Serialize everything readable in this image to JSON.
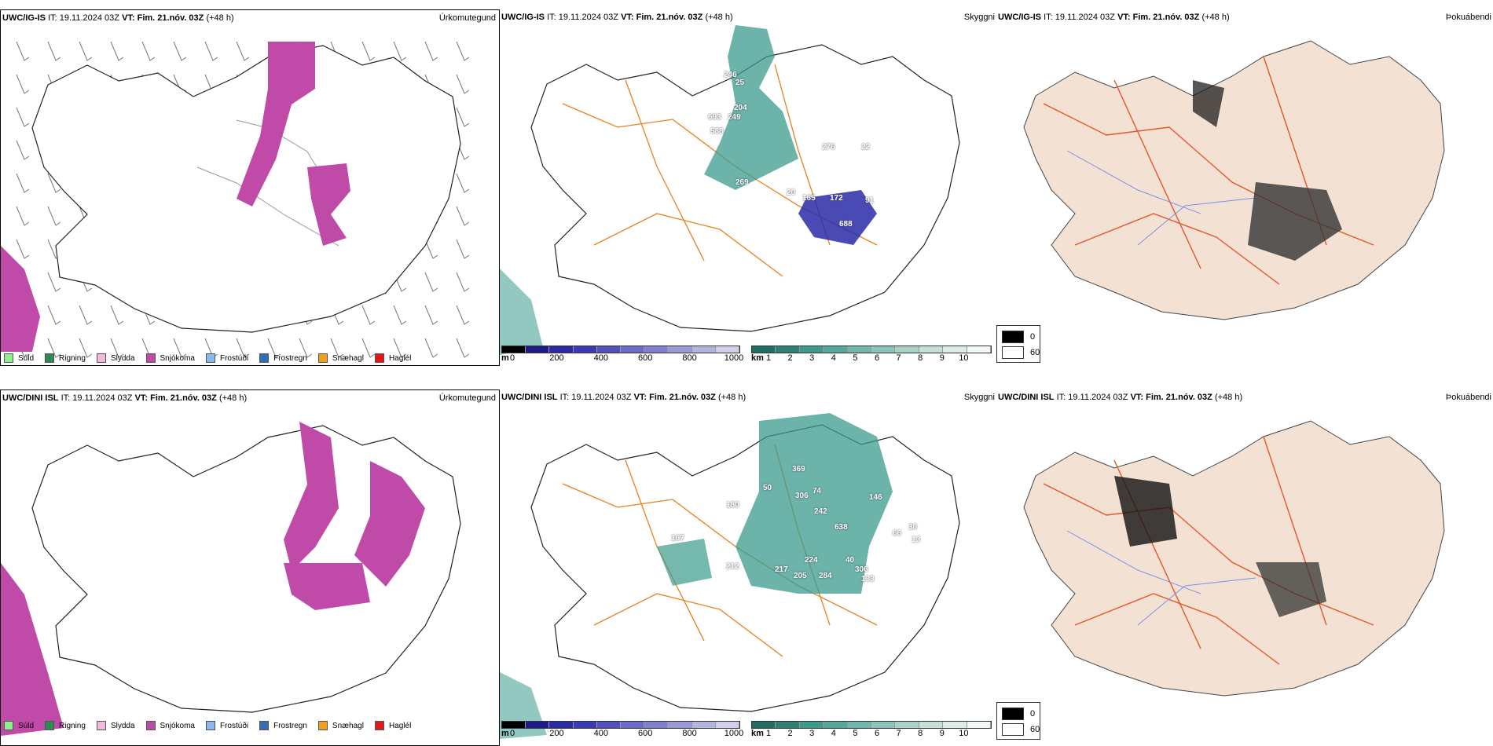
{
  "rows": [
    {
      "model": "UWC/IG-IS",
      "it_label": "IT:",
      "it_value": "19.11.2024 03Z",
      "vt_label": "VT:",
      "vt_value": "Fim. 21.nóv. 03Z",
      "lead": "(+48 h)",
      "panel_titles": [
        "Úrkomutegund",
        "Skyggni",
        "Þokuábendi"
      ],
      "visibility_labels": [
        "246",
        "25",
        "204",
        "693",
        "249",
        "588",
        "276",
        "22",
        "269",
        "20",
        "165",
        "172",
        "91",
        "688"
      ]
    },
    {
      "model": "UWC/DINI ISL",
      "it_label": "IT:",
      "it_value": "19.11.2024 03Z",
      "vt_label": "VT:",
      "vt_value": "Fim. 21.nóv. 03Z",
      "lead": "(+48 h)",
      "panel_titles": [
        "Úrkomutegund",
        "Skyggni",
        "Þokuábendi"
      ],
      "visibility_labels": [
        "369",
        "50",
        "306",
        "74",
        "180",
        "242",
        "146",
        "638",
        "30",
        "66",
        "13",
        "167",
        "224",
        "212",
        "217",
        "205",
        "284",
        "40",
        "306",
        "133"
      ]
    }
  ],
  "precip_legend": [
    {
      "label": "Súld",
      "color": "#90ee90"
    },
    {
      "label": "Rigning",
      "color": "#2e8b57"
    },
    {
      "label": "Slydda",
      "color": "#f4b8dc"
    },
    {
      "label": "Snjókoma",
      "color": "#c04aa8"
    },
    {
      "label": "Frostúði",
      "color": "#87b9ef"
    },
    {
      "label": "Frostregn",
      "color": "#2f6fb8"
    },
    {
      "label": "Snæhagl",
      "color": "#f0a020"
    },
    {
      "label": "Haglél",
      "color": "#e01818"
    }
  ],
  "vis_m_bar": {
    "unit": "m",
    "ticks": [
      "0",
      "200",
      "400",
      "600",
      "800",
      "1000"
    ]
  },
  "vis_km_bar": {
    "unit": "km",
    "ticks": [
      "1",
      "2",
      "3",
      "4",
      "5",
      "6",
      "7",
      "8",
      "9",
      "10"
    ]
  },
  "fog_legend": [
    {
      "label": "0",
      "color": "#000000"
    },
    {
      "label": "60",
      "color": "#ffffff"
    }
  ],
  "colors": {
    "snow": "#c04aa8",
    "vis_low": "#2a2aa8",
    "vis_high": "#3b9a8c",
    "roads": "#e8821e",
    "fog_land": "#f3e2d4",
    "fog_roads": "#e8542a",
    "fog_rivers": "#7d8fe8"
  }
}
